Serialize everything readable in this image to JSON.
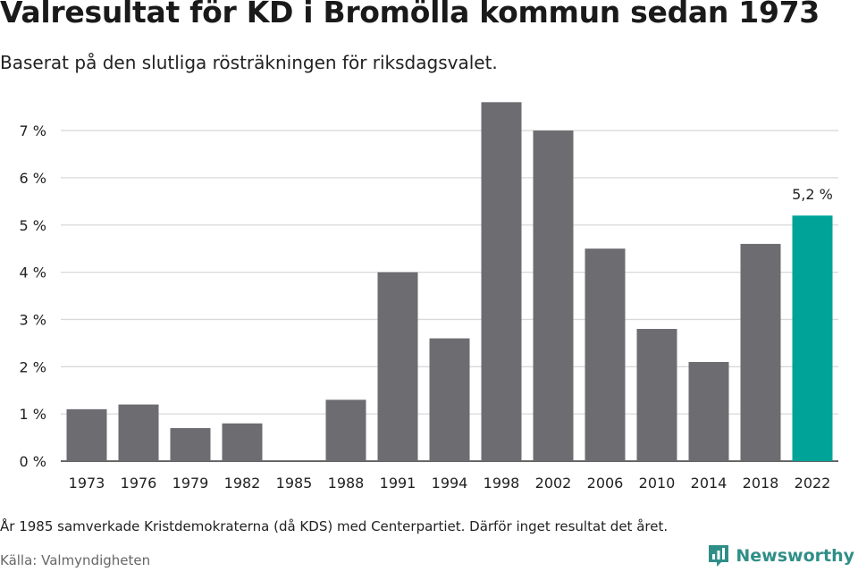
{
  "title": "Valresultat för KD i Bromölla kommun sedan 1973",
  "subtitle": "Baserat på den slutliga rösträkningen för riksdagsvalet.",
  "note": "År 1985 samverkade Kristdemokraterna (då KDS) med Centerpartiet. Därför inget resultat det året.",
  "source": "Källa: Valmyndigheten",
  "brand": {
    "name": "Newsworthy",
    "icon": "newsworthy-logo-icon"
  },
  "colors": {
    "bar": "#6d6c71",
    "highlight": "#00a398",
    "grid": "#d9d9d9",
    "axis": "#333333"
  },
  "chart_data": {
    "type": "bar",
    "categories": [
      "1973",
      "1976",
      "1979",
      "1982",
      "1985",
      "1988",
      "1991",
      "1994",
      "1998",
      "2002",
      "2006",
      "2010",
      "2014",
      "2018",
      "2022"
    ],
    "values": [
      1.1,
      1.2,
      0.7,
      0.8,
      null,
      1.3,
      4.0,
      2.6,
      7.6,
      7.0,
      4.5,
      2.8,
      2.1,
      4.6,
      5.2
    ],
    "ylim": [
      0,
      7.6
    ],
    "yticks": [
      0,
      1,
      2,
      3,
      4,
      5,
      6,
      7
    ],
    "ytick_labels": [
      "0 %",
      "1 %",
      "2 %",
      "3 %",
      "4 %",
      "5 %",
      "6 %",
      "7 %"
    ],
    "highlight_index": 14,
    "data_labels": [
      {
        "index": 14,
        "text": "5,2 %"
      }
    ],
    "grid": true,
    "xlabel": "",
    "ylabel": ""
  }
}
